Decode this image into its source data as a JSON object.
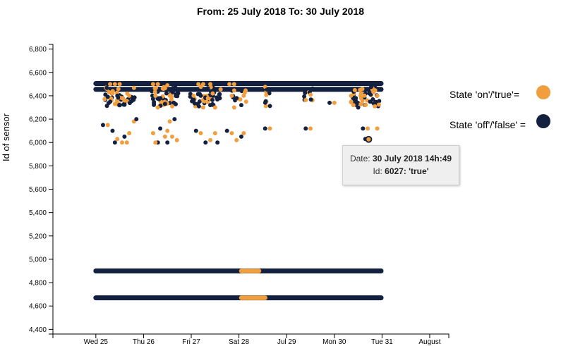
{
  "chart_data": {
    "type": "scatter",
    "title": "From: 25 July 2018 To: 30 July 2018",
    "ylabel": "Id of sensor",
    "xlabel": "",
    "ylim": [
      4360,
      6840
    ],
    "xlim": [
      -0.9,
      7.4
    ],
    "ytick_values": [
      4400,
      4600,
      4800,
      5000,
      5200,
      5400,
      5600,
      5800,
      6000,
      6200,
      6400,
      6600,
      6800
    ],
    "ytick_labels": [
      "4,400",
      "4,600",
      "4,800",
      "5,000",
      "5,200",
      "5,400",
      "5,600",
      "5,800",
      "6,000",
      "6,200",
      "6,400",
      "6,600",
      "6,800"
    ],
    "xtick_values": [
      0,
      1,
      2,
      3,
      4,
      5,
      6,
      7
    ],
    "xtick_labels": [
      "Wed 25",
      "Thu 26",
      "Fri 27",
      "Sat 28",
      "Jul 29",
      "Mon 30",
      "Tue 31",
      "August"
    ],
    "x_unit": "days since Wed 25 July 2018",
    "colors": {
      "on": "#f19e3f",
      "off": "#13203f"
    },
    "legend": [
      {
        "label": "State 'on'/'true'=",
        "state": "on"
      },
      {
        "label": "State 'off'/'false' =",
        "state": "off"
      }
    ],
    "bands": [
      {
        "id": 6505,
        "start": 0.0,
        "end": 5.98,
        "state": "off"
      },
      {
        "id": 6455,
        "start": 0.0,
        "end": 5.98,
        "state": "off"
      },
      {
        "id": 4900,
        "start": 0.0,
        "end": 5.98,
        "state": "off"
      },
      {
        "id": 4670,
        "start": 0.0,
        "end": 5.98,
        "state": "off"
      },
      {
        "id": 4900,
        "start": 3.05,
        "end": 3.42,
        "state": "on"
      },
      {
        "id": 4670,
        "start": 3.05,
        "end": 3.55,
        "state": "on"
      }
    ],
    "clusters": [
      {
        "center": 0.5,
        "spread": 0.32,
        "dense": true
      },
      {
        "center": 1.45,
        "spread": 0.28,
        "dense": true
      },
      {
        "center": 2.3,
        "spread": 0.32,
        "dense": true
      },
      {
        "center": 3.0,
        "spread": 0.15,
        "dense": false
      },
      {
        "center": 3.6,
        "spread": 0.05,
        "dense": false
      },
      {
        "center": 4.45,
        "spread": 0.1,
        "dense": false
      },
      {
        "center": 5.65,
        "spread": 0.3,
        "dense": true
      }
    ],
    "points": [
      {
        "x": 0.3,
        "id": 6500,
        "state": "on"
      },
      {
        "x": 0.4,
        "id": 6500,
        "state": "on"
      },
      {
        "x": 0.5,
        "id": 6500,
        "state": "on"
      },
      {
        "x": 0.35,
        "id": 6420,
        "state": "on"
      },
      {
        "x": 0.45,
        "id": 6400,
        "state": "off"
      },
      {
        "x": 0.55,
        "id": 6380,
        "state": "on"
      },
      {
        "x": 0.3,
        "id": 6350,
        "state": "off"
      },
      {
        "x": 0.6,
        "id": 6360,
        "state": "on"
      },
      {
        "x": 0.4,
        "id": 6330,
        "state": "on"
      },
      {
        "x": 0.5,
        "id": 6320,
        "state": "off"
      },
      {
        "x": 0.2,
        "id": 6410,
        "state": "off"
      },
      {
        "x": 0.7,
        "id": 6400,
        "state": "on"
      },
      {
        "x": 0.25,
        "id": 6150,
        "state": "on"
      },
      {
        "x": 0.15,
        "id": 6150,
        "state": "off"
      },
      {
        "x": 0.35,
        "id": 6100,
        "state": "off"
      },
      {
        "x": 0.45,
        "id": 6030,
        "state": "on"
      },
      {
        "x": 0.4,
        "id": 6000,
        "state": "off"
      },
      {
        "x": 0.55,
        "id": 6000,
        "state": "on"
      },
      {
        "x": 0.65,
        "id": 6000,
        "state": "on"
      },
      {
        "x": 0.7,
        "id": 6080,
        "state": "on"
      },
      {
        "x": 0.8,
        "id": 6180,
        "state": "on"
      },
      {
        "x": 0.85,
        "id": 6200,
        "state": "off"
      },
      {
        "x": 0.6,
        "id": 6050,
        "state": "off"
      },
      {
        "x": 1.2,
        "id": 6500,
        "state": "on"
      },
      {
        "x": 1.3,
        "id": 6500,
        "state": "on"
      },
      {
        "x": 1.5,
        "id": 6490,
        "state": "on"
      },
      {
        "x": 1.25,
        "id": 6400,
        "state": "on"
      },
      {
        "x": 1.35,
        "id": 6380,
        "state": "off"
      },
      {
        "x": 1.55,
        "id": 6400,
        "state": "on"
      },
      {
        "x": 1.3,
        "id": 6300,
        "state": "on"
      },
      {
        "x": 1.45,
        "id": 6330,
        "state": "off"
      },
      {
        "x": 1.6,
        "id": 6310,
        "state": "on"
      },
      {
        "x": 1.2,
        "id": 6080,
        "state": "on"
      },
      {
        "x": 1.35,
        "id": 6120,
        "state": "off"
      },
      {
        "x": 1.45,
        "id": 6050,
        "state": "on"
      },
      {
        "x": 1.3,
        "id": 6000,
        "state": "off"
      },
      {
        "x": 1.5,
        "id": 6000,
        "state": "off"
      },
      {
        "x": 1.6,
        "id": 6050,
        "state": "on"
      },
      {
        "x": 1.7,
        "id": 6020,
        "state": "on"
      },
      {
        "x": 1.55,
        "id": 6180,
        "state": "on"
      },
      {
        "x": 1.65,
        "id": 6200,
        "state": "off"
      },
      {
        "x": 1.5,
        "id": 6100,
        "state": "on"
      },
      {
        "x": 1.25,
        "id": 6000,
        "state": "on"
      },
      {
        "x": 2.15,
        "id": 6500,
        "state": "on"
      },
      {
        "x": 2.25,
        "id": 6500,
        "state": "on"
      },
      {
        "x": 2.4,
        "id": 6500,
        "state": "on"
      },
      {
        "x": 2.2,
        "id": 6400,
        "state": "off"
      },
      {
        "x": 2.35,
        "id": 6380,
        "state": "on"
      },
      {
        "x": 2.45,
        "id": 6420,
        "state": "on"
      },
      {
        "x": 2.25,
        "id": 6300,
        "state": "on"
      },
      {
        "x": 2.4,
        "id": 6320,
        "state": "off"
      },
      {
        "x": 2.5,
        "id": 6300,
        "state": "on"
      },
      {
        "x": 2.2,
        "id": 6080,
        "state": "on"
      },
      {
        "x": 2.3,
        "id": 6000,
        "state": "off"
      },
      {
        "x": 2.4,
        "id": 6020,
        "state": "on"
      },
      {
        "x": 2.5,
        "id": 6080,
        "state": "on"
      },
      {
        "x": 2.1,
        "id": 6100,
        "state": "off"
      },
      {
        "x": 2.6,
        "id": 6380,
        "state": "off"
      },
      {
        "x": 2.05,
        "id": 6400,
        "state": "on"
      },
      {
        "x": 2.55,
        "id": 6000,
        "state": "off"
      },
      {
        "x": 2.8,
        "id": 6500,
        "state": "on"
      },
      {
        "x": 2.9,
        "id": 6500,
        "state": "on"
      },
      {
        "x": 2.85,
        "id": 6400,
        "state": "on"
      },
      {
        "x": 2.95,
        "id": 6380,
        "state": "off"
      },
      {
        "x": 3.1,
        "id": 6400,
        "state": "on"
      },
      {
        "x": 2.9,
        "id": 6300,
        "state": "on"
      },
      {
        "x": 3.05,
        "id": 6320,
        "state": "off"
      },
      {
        "x": 3.15,
        "id": 6350,
        "state": "on"
      },
      {
        "x": 2.85,
        "id": 6080,
        "state": "on"
      },
      {
        "x": 2.95,
        "id": 6020,
        "state": "on"
      },
      {
        "x": 3.05,
        "id": 6050,
        "state": "off"
      },
      {
        "x": 3.1,
        "id": 6080,
        "state": "on"
      },
      {
        "x": 2.75,
        "id": 6100,
        "state": "off"
      },
      {
        "x": 3.55,
        "id": 6120,
        "state": "off"
      },
      {
        "x": 3.65,
        "id": 6120,
        "state": "on"
      },
      {
        "x": 4.4,
        "id": 6120,
        "state": "off"
      },
      {
        "x": 4.5,
        "id": 6120,
        "state": "on"
      },
      {
        "x": 4.9,
        "id": 6340,
        "state": "off"
      },
      {
        "x": 5.0,
        "id": 6340,
        "state": "on"
      },
      {
        "x": 5.35,
        "id": 6400,
        "state": "on"
      },
      {
        "x": 5.45,
        "id": 6380,
        "state": "off"
      },
      {
        "x": 5.55,
        "id": 6400,
        "state": "on"
      },
      {
        "x": 5.4,
        "id": 6320,
        "state": "on"
      },
      {
        "x": 5.5,
        "id": 6300,
        "state": "off"
      },
      {
        "x": 5.65,
        "id": 6320,
        "state": "on"
      },
      {
        "x": 5.75,
        "id": 6350,
        "state": "off"
      },
      {
        "x": 5.85,
        "id": 6310,
        "state": "on"
      },
      {
        "x": 5.9,
        "id": 6400,
        "state": "on"
      },
      {
        "x": 5.6,
        "id": 6120,
        "state": "off"
      },
      {
        "x": 5.7,
        "id": 6120,
        "state": "on"
      },
      {
        "x": 5.9,
        "id": 6120,
        "state": "on"
      },
      {
        "x": 5.65,
        "id": 6030,
        "state": "off"
      },
      {
        "x": 5.72,
        "id": 6027,
        "state": "on"
      }
    ],
    "tooltip": {
      "date_prefix": "Date: ",
      "date": "30 July 2018 14h:49",
      "id_prefix": "Id: ",
      "id_value": "6027: 'true'",
      "x": 5.72,
      "id": 6027
    }
  }
}
